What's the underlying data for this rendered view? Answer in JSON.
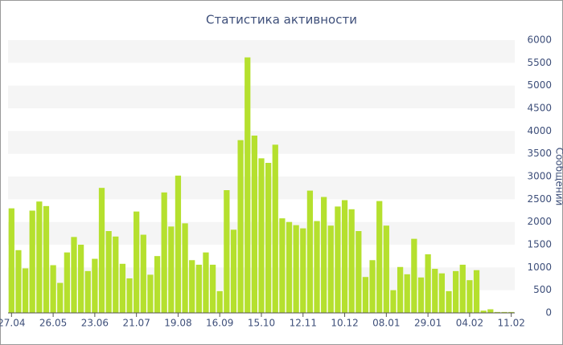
{
  "chart_data": {
    "type": "bar",
    "title": "Статистика активности",
    "y_axis_label": "Сообщений",
    "categories": [
      "27.04",
      null,
      null,
      null,
      null,
      null,
      "26.05",
      null,
      null,
      null,
      null,
      null,
      "23.06",
      null,
      null,
      null,
      null,
      null,
      "21.07",
      null,
      null,
      null,
      null,
      null,
      "19.08",
      null,
      null,
      null,
      null,
      null,
      "16.09",
      null,
      null,
      null,
      null,
      null,
      "15.10",
      null,
      null,
      null,
      null,
      null,
      "12.11",
      null,
      null,
      null,
      null,
      null,
      "10.12",
      null,
      null,
      null,
      null,
      null,
      "08.01",
      null,
      null,
      null,
      null,
      null,
      "29.01",
      null,
      null,
      null,
      null,
      null,
      "04.02",
      null,
      null,
      null,
      null,
      null,
      "11.02"
    ],
    "values": [
      2300,
      1380,
      980,
      2250,
      2450,
      2350,
      1050,
      660,
      1330,
      1670,
      1500,
      920,
      1190,
      2750,
      1800,
      1680,
      1080,
      760,
      2230,
      1720,
      840,
      1250,
      2650,
      1900,
      3020,
      1970,
      1160,
      1060,
      1330,
      1060,
      480,
      2700,
      1830,
      3800,
      5620,
      3900,
      3400,
      3300,
      3700,
      2080,
      2000,
      1930,
      1860,
      2690,
      2020,
      2550,
      1920,
      2340,
      2480,
      2280,
      1800,
      790,
      1160,
      2460,
      1920,
      500,
      1010,
      850,
      1630,
      780,
      1290,
      970,
      870,
      480,
      920,
      1060,
      720,
      940,
      50,
      80,
      20,
      20,
      20
    ],
    "color": "#b5e02e",
    "ylim": [
      0,
      6000
    ],
    "yticks": [
      0,
      500,
      1000,
      1500,
      2000,
      2500,
      3000,
      3500,
      4000,
      4500,
      5000,
      5500,
      6000
    ],
    "grid": true
  }
}
